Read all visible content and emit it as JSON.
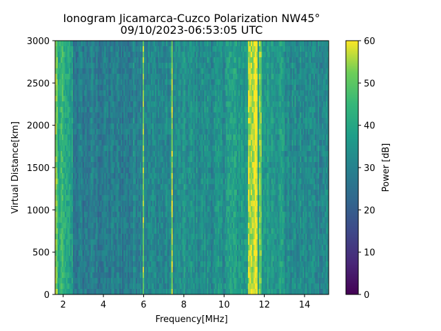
{
  "chart_data": {
    "type": "heatmap",
    "title": "Ionogram Jicamarca-Cuzco Polarization NW45°",
    "subtitle": "09/10/2023-06:53:05 UTC",
    "xlabel": "Frequency[MHz]",
    "ylabel": "Virtual Distance[km]",
    "xlim": [
      1.6,
      15.2
    ],
    "ylim": [
      0,
      3000
    ],
    "x_ticks": [
      2,
      4,
      6,
      8,
      10,
      12,
      14
    ],
    "y_ticks": [
      0,
      500,
      1000,
      1500,
      2000,
      2500,
      3000
    ],
    "colorbar": {
      "label": "Power [dB]",
      "min": 0,
      "max": 60,
      "ticks": [
        0,
        10,
        20,
        30,
        40,
        50,
        60
      ],
      "colormap": "viridis"
    },
    "grid": false,
    "notes_bright_bands_mhz": [
      {
        "from": 1.6,
        "to": 1.75,
        "level_db": 52
      },
      {
        "from": 1.9,
        "to": 2.05,
        "level_db": 45
      },
      {
        "from": 5.95,
        "to": 6.05,
        "level_db": 55
      },
      {
        "from": 7.35,
        "to": 7.45,
        "level_db": 55
      },
      {
        "from": 11.2,
        "to": 11.65,
        "level_db": 58
      },
      {
        "from": 11.75,
        "to": 11.9,
        "level_db": 50
      }
    ]
  }
}
